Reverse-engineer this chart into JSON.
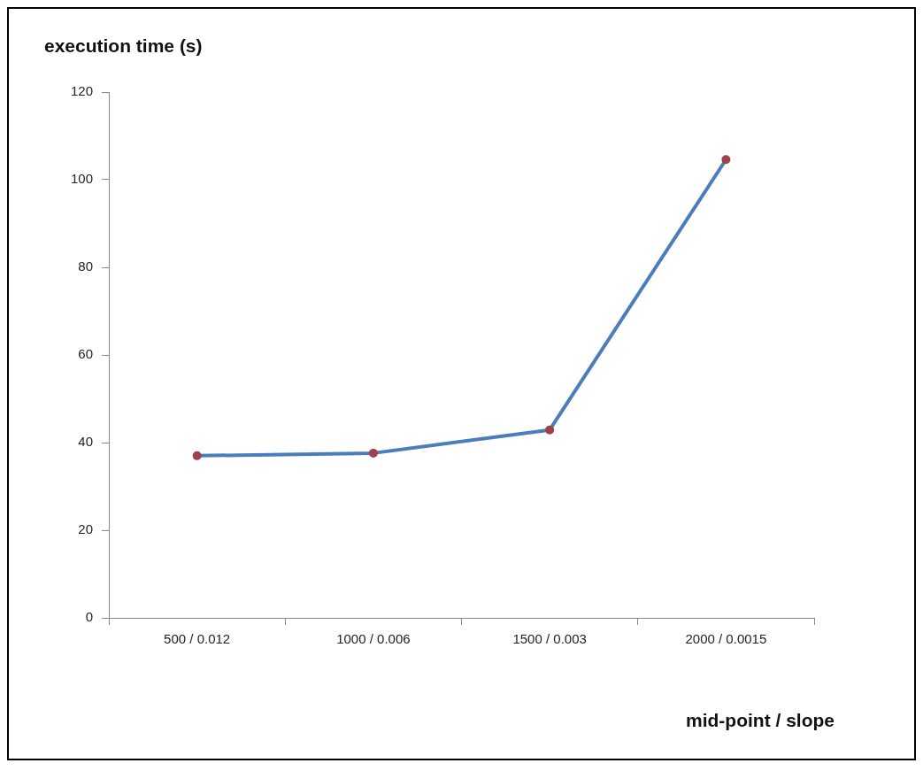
{
  "chart_data": {
    "type": "line",
    "xlabel": "mid-point / slope",
    "ylabel": "execution time (s)",
    "categories": [
      "500 / 0.012",
      "1000 / 0.006",
      "1500 / 0.003",
      "2000 / 0.0015"
    ],
    "series": [
      {
        "color": "#4a7ebb",
        "values": [
          37.0,
          37.6,
          42.9,
          104.6
        ]
      }
    ],
    "ylim": [
      0,
      120
    ],
    "yticks": [
      0,
      20,
      40,
      60,
      80,
      100,
      120
    ],
    "marker": "circle",
    "legend": false
  }
}
